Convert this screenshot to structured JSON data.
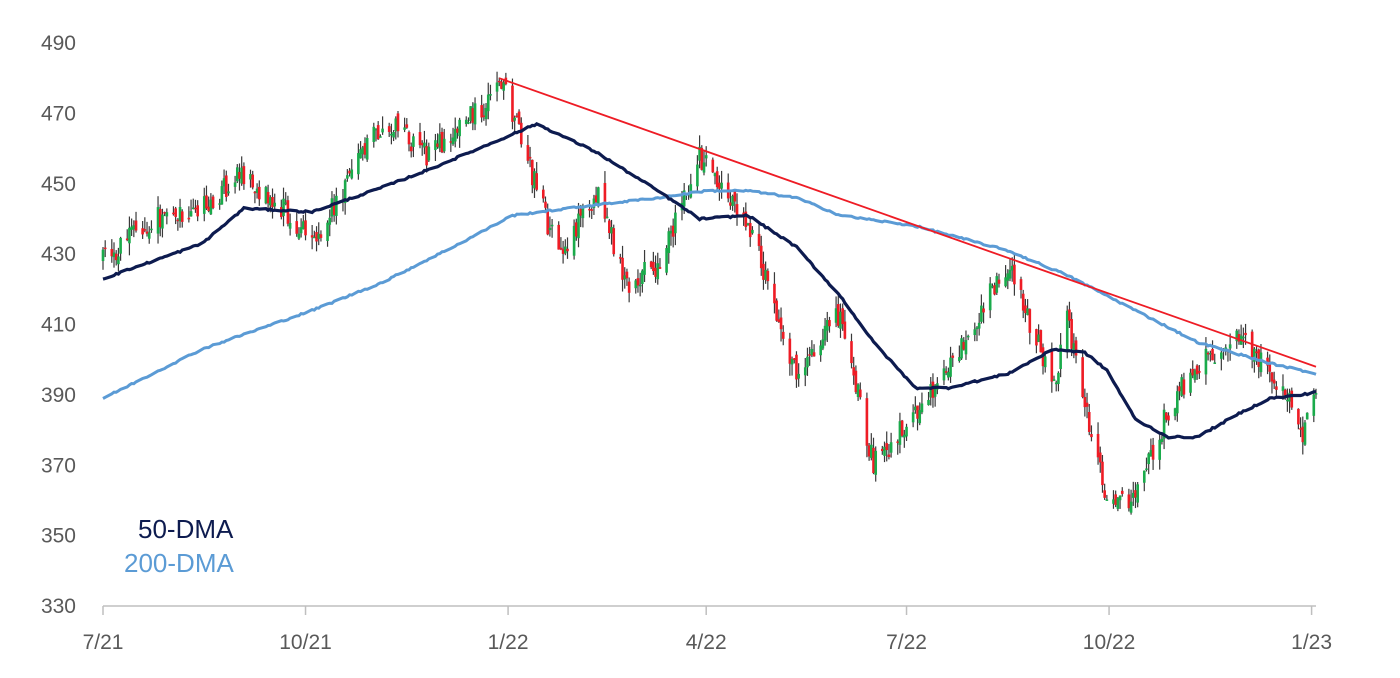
{
  "chart_data": {
    "type": "candlestick",
    "title": "",
    "xlabel": "",
    "ylabel": "",
    "ylim": [
      330,
      490
    ],
    "y_ticks": [
      330,
      350,
      370,
      390,
      410,
      430,
      450,
      470,
      490
    ],
    "x_ticks": [
      "7/21",
      "10/21",
      "1/22",
      "4/22",
      "7/22",
      "10/22",
      "1/23"
    ],
    "grid": false,
    "colors": {
      "up": "#1aab4b",
      "down": "#ee1c25",
      "wick": "#3a3a3a",
      "ma50": "#0d1b4f",
      "ma200": "#5b9bd5",
      "trend": "#ee1c25",
      "axis": "#bfbfbf"
    },
    "legend": [
      {
        "name": "50-DMA",
        "color": "#0d1b4f"
      },
      {
        "name": "200-DMA",
        "color": "#5b9bd5"
      }
    ],
    "price_path": {
      "dates": [
        "2021-07-01",
        "2021-07-20",
        "2021-08-15",
        "2021-09-03",
        "2021-09-20",
        "2021-10-04",
        "2021-10-20",
        "2021-11-05",
        "2021-11-26",
        "2021-12-10",
        "2021-12-30",
        "2022-01-24",
        "2022-02-10",
        "2022-02-24",
        "2022-03-10",
        "2022-03-29",
        "2022-04-20",
        "2022-05-12",
        "2022-06-01",
        "2022-06-16",
        "2022-07-05",
        "2022-07-20",
        "2022-08-16",
        "2022-09-06",
        "2022-09-12",
        "2022-09-30",
        "2022-10-13",
        "2022-10-28",
        "2022-11-10",
        "2022-11-30",
        "2022-12-13",
        "2022-12-28",
        "2023-01-03"
      ],
      "closes": [
        428,
        439,
        444,
        453,
        443,
        434,
        450,
        468,
        458,
        466,
        478,
        429,
        448,
        421,
        427,
        457,
        440,
        396,
        413,
        370,
        385,
        397,
        428,
        392,
        412,
        359,
        360,
        386,
        398,
        406,
        398,
        380,
        392
      ]
    },
    "series": [
      {
        "name": "50-DMA",
        "dates": [
          "2021-07-01",
          "2021-08-15",
          "2021-09-03",
          "2021-10-04",
          "2021-11-05",
          "2021-11-26",
          "2021-12-30",
          "2022-01-14",
          "2022-02-10",
          "2022-03-10",
          "2022-03-29",
          "2022-04-20",
          "2022-05-12",
          "2022-06-01",
          "2022-06-16",
          "2022-07-05",
          "2022-07-20",
          "2022-08-16",
          "2022-09-06",
          "2022-09-20",
          "2022-09-30",
          "2022-10-13",
          "2022-10-28",
          "2022-11-10",
          "2022-11-30",
          "2022-12-13",
          "2022-12-28",
          "2023-01-03"
        ],
        "values": [
          423,
          433,
          443,
          442,
          449,
          454,
          463,
          467,
          459,
          448,
          440,
          441,
          432,
          418,
          405,
          392,
          392,
          396,
          403,
          402,
          397,
          383,
          378,
          378,
          385,
          389,
          390,
          391
        ]
      },
      {
        "name": "200-DMA",
        "dates": [
          "2021-07-01",
          "2021-08-15",
          "2021-10-04",
          "2021-11-05",
          "2021-12-10",
          "2022-01-03",
          "2022-02-10",
          "2022-03-10",
          "2022-04-01",
          "2022-04-20",
          "2022-05-12",
          "2022-06-01",
          "2022-07-05",
          "2022-08-16",
          "2022-09-12",
          "2022-10-13",
          "2022-11-10",
          "2022-12-13",
          "2023-01-03"
        ],
        "values": [
          389,
          403,
          414,
          422,
          433,
          441,
          444,
          446,
          448,
          448,
          446,
          441,
          438,
          431,
          424,
          414,
          405,
          399,
          396
        ]
      }
    ],
    "trendline": {
      "from": {
        "date": "2021-12-28",
        "value": 480
      },
      "to": {
        "date": "2023-01-03",
        "value": 398
      }
    }
  }
}
